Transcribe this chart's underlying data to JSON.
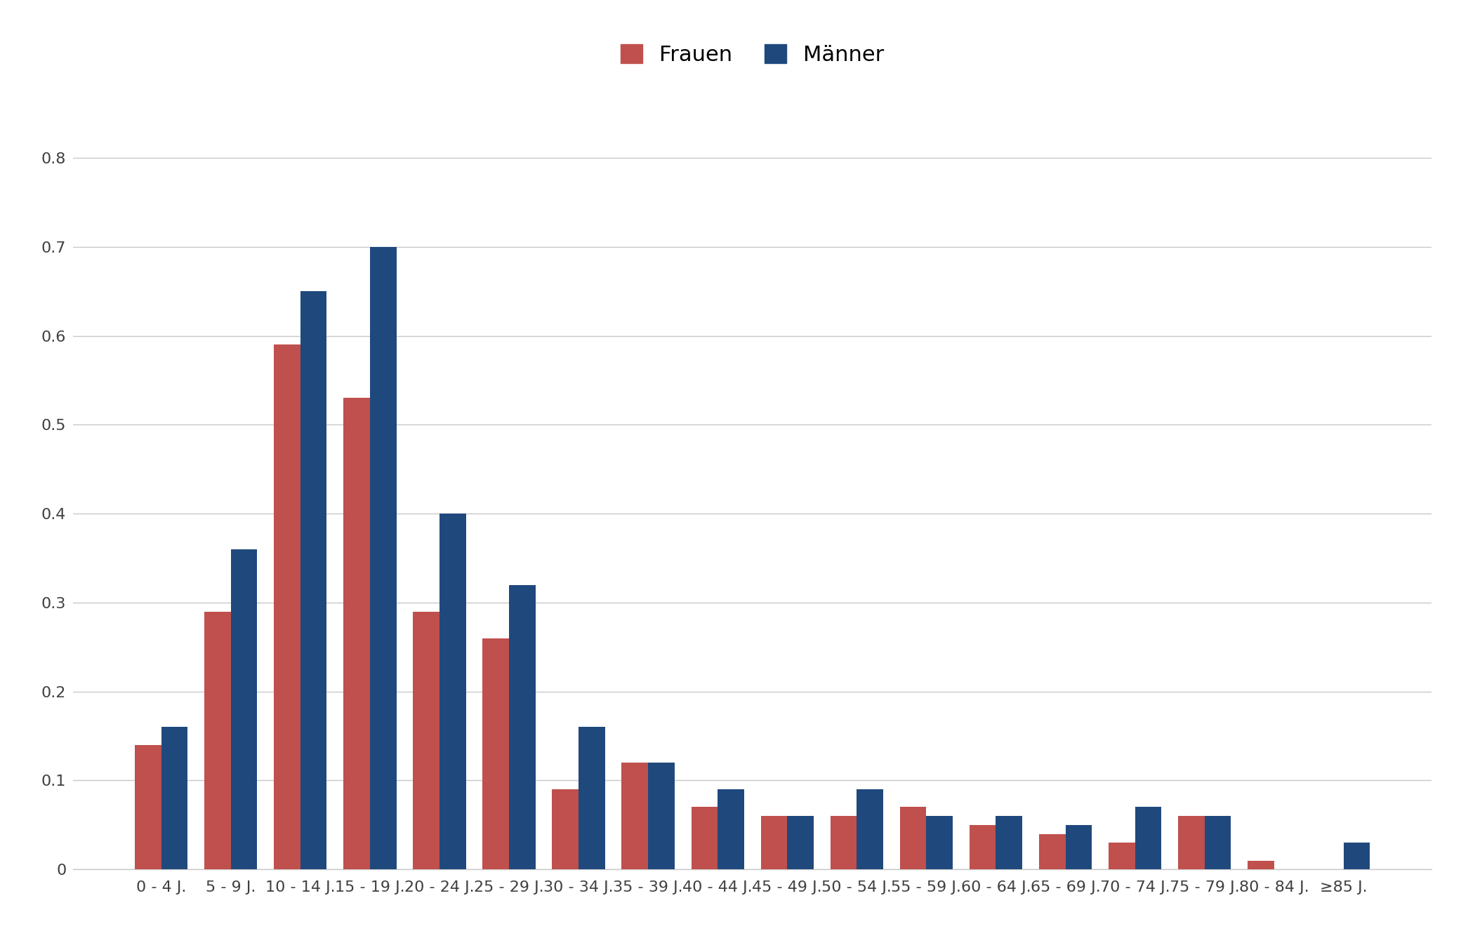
{
  "categories": [
    "0 - 4 J.",
    "5 - 9 J.",
    "10 - 14 J.",
    "15 - 19 J.",
    "20 - 24 J.",
    "25 - 29 J.",
    "30 - 34 J.",
    "35 - 39 J.",
    "40 - 44 J.",
    "45 - 49 J.",
    "50 - 54 J.",
    "55 - 59 J.",
    "60 - 64 J.",
    "65 - 69 J.",
    "70 - 74 J.",
    "75 - 79 J.",
    "80 - 84 J.",
    "≥85 J."
  ],
  "frauen": [
    0.14,
    0.29,
    0.59,
    0.53,
    0.29,
    0.26,
    0.09,
    0.12,
    0.07,
    0.06,
    0.06,
    0.07,
    0.05,
    0.04,
    0.03,
    0.06,
    0.01,
    0.0
  ],
  "maenner": [
    0.16,
    0.36,
    0.65,
    0.7,
    0.4,
    0.32,
    0.16,
    0.12,
    0.09,
    0.06,
    0.09,
    0.06,
    0.06,
    0.05,
    0.07,
    0.06,
    0.0,
    0.03
  ],
  "frauen_color": "#C0504D",
  "maenner_color": "#1F497D",
  "background_color": "#FFFFFF",
  "plot_bg_color": "#F2F2F2",
  "grid_color": "#C8C8C8",
  "ylim": [
    0,
    0.85
  ],
  "yticks": [
    0.0,
    0.1,
    0.2,
    0.3,
    0.4,
    0.5,
    0.6,
    0.7,
    0.8
  ],
  "legend_frauen": "Frauen",
  "legend_maenner": "Männer",
  "bar_width": 0.38,
  "tick_fontsize": 16,
  "legend_fontsize": 22,
  "figsize": [
    20.81,
    13.47
  ],
  "dpi": 100
}
